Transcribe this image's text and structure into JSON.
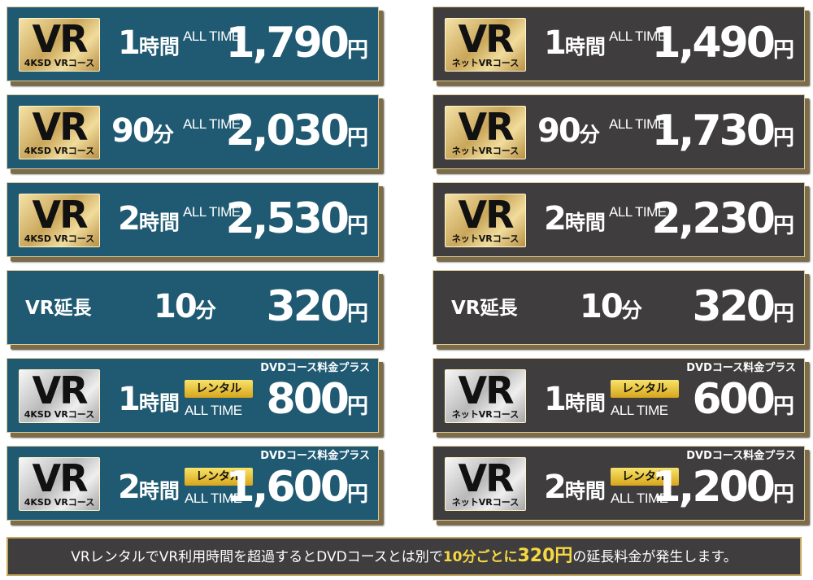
{
  "columns": [
    {
      "cards": [
        {
          "badge": {
            "title": "VR",
            "course": "4KSD VRコース"
          },
          "duration": {
            "number": "1",
            "unit": "時間"
          },
          "label": "ALL TIME",
          "price": {
            "number": "1,790",
            "unit": "円"
          }
        },
        {
          "badge": {
            "title": "VR",
            "course": "4KSD VRコース"
          },
          "duration": {
            "number": "90",
            "unit": "分"
          },
          "label": "ALL TIME",
          "price": {
            "number": "2,030",
            "unit": "円"
          }
        },
        {
          "badge": {
            "title": "VR",
            "course": "4KSD VRコース"
          },
          "duration": {
            "number": "2",
            "unit": "時間"
          },
          "label": "ALL TIME",
          "price": {
            "number": "2,530",
            "unit": "円"
          }
        },
        {
          "title": "VR延長",
          "duration": {
            "number": "10",
            "unit": "分"
          },
          "price": {
            "number": "320",
            "unit": "円"
          }
        },
        {
          "badge": {
            "title": "VR",
            "course": "4KSD VRコース"
          },
          "duration": {
            "number": "1",
            "unit": "時間"
          },
          "tag": "レンタル",
          "label": "ALL TIME",
          "note": "DVDコース料金プラス",
          "price": {
            "number": "800",
            "unit": "円"
          }
        },
        {
          "badge": {
            "title": "VR",
            "course": "4KSD VRコース"
          },
          "duration": {
            "number": "2",
            "unit": "時間"
          },
          "tag": "レンタル",
          "label": "ALL TIME",
          "note": "DVDコース料金プラス",
          "price": {
            "number": "1,600",
            "unit": "円"
          }
        }
      ]
    },
    {
      "cards": [
        {
          "badge": {
            "title": "VR",
            "course": "ネットVRコース"
          },
          "duration": {
            "number": "1",
            "unit": "時間"
          },
          "label": "ALL TIME",
          "price": {
            "number": "1,490",
            "unit": "円"
          }
        },
        {
          "badge": {
            "title": "VR",
            "course": "ネットVRコース"
          },
          "duration": {
            "number": "90",
            "unit": "分"
          },
          "label": "ALL TIME",
          "price": {
            "number": "1,730",
            "unit": "円"
          }
        },
        {
          "badge": {
            "title": "VR",
            "course": "ネットVRコース"
          },
          "duration": {
            "number": "2",
            "unit": "時間"
          },
          "label": "ALL TIME",
          "price": {
            "number": "2,230",
            "unit": "円"
          }
        },
        {
          "title": "VR延長",
          "duration": {
            "number": "10",
            "unit": "分"
          },
          "price": {
            "number": "320",
            "unit": "円"
          }
        },
        {
          "badge": {
            "title": "VR",
            "course": "ネットVRコース"
          },
          "duration": {
            "number": "1",
            "unit": "時間"
          },
          "tag": "レンタル",
          "label": "ALL TIME",
          "note": "DVDコース料金プラス",
          "price": {
            "number": "600",
            "unit": "円"
          }
        },
        {
          "badge": {
            "title": "VR",
            "course": "ネットVRコース"
          },
          "duration": {
            "number": "2",
            "unit": "時間"
          },
          "tag": "レンタル",
          "label": "ALL TIME",
          "note": "DVDコース料金プラス",
          "price": {
            "number": "1,200",
            "unit": "円"
          }
        }
      ]
    }
  ],
  "notice": {
    "parts": [
      {
        "text": "VRレンタルでVR利用時間を超過するとDVDコースとは別で"
      },
      {
        "text": "10分ごとに",
        "highlight": true
      },
      {
        "text": "320円",
        "highlight": true,
        "large": true
      },
      {
        "text": "の延長料金が発生します。"
      }
    ]
  }
}
